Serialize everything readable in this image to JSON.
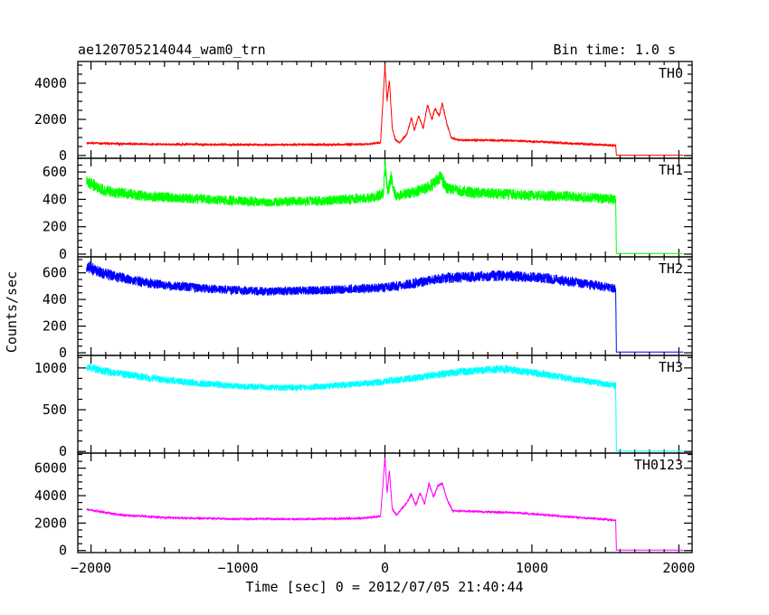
{
  "chart_data": {
    "type": "line",
    "title": "ae120705214044_wam0_trn",
    "bin_time": "Bin time: 1.0 s",
    "xlabel": "Time [sec] 0 = 2012/07/05 21:40:44",
    "ylabel": "Counts/sec",
    "xlim": [
      -2090,
      2090
    ],
    "x_ticks": [
      -2000,
      -1000,
      0,
      1000,
      2000
    ],
    "x_tick_labels": [
      "−2000",
      "−1000",
      "0",
      "1000",
      "2000"
    ],
    "grid": false,
    "panels": [
      {
        "name": "TH0",
        "color": "#ff0000",
        "ylim": [
          -150,
          5200
        ],
        "y_ticks": [
          0,
          2000,
          4000
        ],
        "points": [
          [
            -2030,
            700
          ],
          [
            -1800,
            650
          ],
          [
            -1500,
            620
          ],
          [
            -1000,
            600
          ],
          [
            -500,
            600
          ],
          [
            -150,
            620
          ],
          [
            -30,
            700
          ],
          [
            0,
            5000
          ],
          [
            15,
            3000
          ],
          [
            30,
            4200
          ],
          [
            50,
            1500
          ],
          [
            70,
            900
          ],
          [
            100,
            700
          ],
          [
            150,
            1200
          ],
          [
            180,
            2100
          ],
          [
            200,
            1400
          ],
          [
            230,
            2200
          ],
          [
            260,
            1500
          ],
          [
            290,
            2800
          ],
          [
            320,
            2000
          ],
          [
            340,
            2600
          ],
          [
            370,
            2200
          ],
          [
            390,
            2900
          ],
          [
            420,
            1800
          ],
          [
            450,
            1000
          ],
          [
            500,
            850
          ],
          [
            700,
            850
          ],
          [
            900,
            820
          ],
          [
            1200,
            700
          ],
          [
            1400,
            620
          ],
          [
            1570,
            560
          ],
          [
            1575,
            20
          ],
          [
            2030,
            20
          ]
        ]
      },
      {
        "name": "TH1",
        "color": "#00ff00",
        "ylim": [
          -20,
          700
        ],
        "y_ticks": [
          0,
          200,
          400,
          600
        ],
        "points": [
          [
            -2030,
            530
          ],
          [
            -1900,
            460
          ],
          [
            -1600,
            420
          ],
          [
            -1200,
            400
          ],
          [
            -800,
            380
          ],
          [
            -400,
            390
          ],
          [
            -100,
            410
          ],
          [
            -10,
            440
          ],
          [
            0,
            650
          ],
          [
            20,
            450
          ],
          [
            40,
            560
          ],
          [
            70,
            430
          ],
          [
            200,
            450
          ],
          [
            300,
            490
          ],
          [
            380,
            560
          ],
          [
            420,
            480
          ],
          [
            600,
            450
          ],
          [
            1000,
            430
          ],
          [
            1300,
            420
          ],
          [
            1570,
            400
          ],
          [
            1575,
            5
          ],
          [
            2030,
            5
          ]
        ]
      },
      {
        "name": "TH2",
        "color": "#0000ff",
        "ylim": [
          -20,
          720
        ],
        "y_ticks": [
          0,
          200,
          400,
          600
        ],
        "points": [
          [
            -2030,
            650
          ],
          [
            -1900,
            590
          ],
          [
            -1600,
            520
          ],
          [
            -1200,
            480
          ],
          [
            -800,
            460
          ],
          [
            -400,
            470
          ],
          [
            0,
            490
          ],
          [
            200,
            520
          ],
          [
            400,
            560
          ],
          [
            800,
            580
          ],
          [
            1100,
            560
          ],
          [
            1400,
            510
          ],
          [
            1570,
            480
          ],
          [
            1575,
            5
          ],
          [
            2030,
            5
          ]
        ]
      },
      {
        "name": "TH3",
        "color": "#00ffff",
        "ylim": [
          -20,
          1150
        ],
        "y_ticks": [
          0,
          500,
          1000
        ],
        "points": [
          [
            -2030,
            1010
          ],
          [
            -1900,
            960
          ],
          [
            -1600,
            880
          ],
          [
            -1300,
            820
          ],
          [
            -1000,
            780
          ],
          [
            -700,
            760
          ],
          [
            -400,
            780
          ],
          [
            -100,
            820
          ],
          [
            200,
            880
          ],
          [
            500,
            950
          ],
          [
            800,
            990
          ],
          [
            1100,
            920
          ],
          [
            1300,
            860
          ],
          [
            1570,
            790
          ],
          [
            1575,
            5
          ],
          [
            2030,
            5
          ]
        ]
      },
      {
        "name": "TH0123",
        "color": "#ff00ff",
        "ylim": [
          -150,
          7100
        ],
        "y_ticks": [
          0,
          2000,
          4000,
          6000
        ],
        "points": [
          [
            -2030,
            3000
          ],
          [
            -1800,
            2600
          ],
          [
            -1500,
            2400
          ],
          [
            -1000,
            2300
          ],
          [
            -500,
            2300
          ],
          [
            -150,
            2350
          ],
          [
            -30,
            2500
          ],
          [
            0,
            6800
          ],
          [
            15,
            4200
          ],
          [
            30,
            5800
          ],
          [
            50,
            3000
          ],
          [
            80,
            2600
          ],
          [
            150,
            3500
          ],
          [
            180,
            4100
          ],
          [
            210,
            3300
          ],
          [
            240,
            4200
          ],
          [
            270,
            3400
          ],
          [
            300,
            4900
          ],
          [
            330,
            3900
          ],
          [
            360,
            4700
          ],
          [
            390,
            4900
          ],
          [
            420,
            3800
          ],
          [
            460,
            2900
          ],
          [
            600,
            2850
          ],
          [
            900,
            2750
          ],
          [
            1200,
            2500
          ],
          [
            1400,
            2350
          ],
          [
            1570,
            2200
          ],
          [
            1575,
            30
          ],
          [
            2030,
            30
          ]
        ]
      }
    ]
  }
}
